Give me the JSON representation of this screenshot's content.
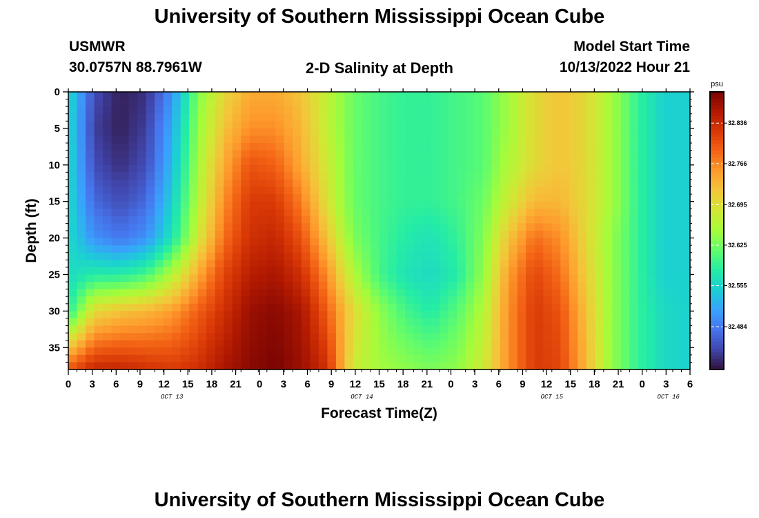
{
  "titles": {
    "top": "University of Southern Mississippi Ocean Cube",
    "bottom": "University of Southern Mississippi Ocean Cube"
  },
  "header": {
    "station": "USMWR",
    "coords": "30.0757N  88.7961W",
    "center_title": "2-D Salinity at Depth",
    "model_label": "Model Start Time",
    "model_time": "10/13/2022 Hour 21"
  },
  "colors": {
    "palette": [
      "#30123b",
      "#4145ab",
      "#4675ed",
      "#39a2fc",
      "#1bcfd4",
      "#24eca6",
      "#61fc6c",
      "#a4fc3b",
      "#d1e834",
      "#f3c63a",
      "#fe9b2d",
      "#f36315",
      "#d93806",
      "#b11901",
      "#7a0403"
    ]
  },
  "chart_data": {
    "type": "heatmap",
    "title": "2-D Salinity at Depth",
    "xlabel": "Forecast Time(Z)",
    "ylabel": "Depth (ft)",
    "x_hours_from_start": [
      0,
      72
    ],
    "x_tick_labels": [
      "0",
      "3",
      "6",
      "9",
      "12",
      "15",
      "18",
      "21",
      "0",
      "3",
      "6",
      "9",
      "12",
      "15",
      "18",
      "21",
      "0",
      "3",
      "6",
      "9",
      "12",
      "15",
      "18",
      "21",
      "0",
      "3",
      "6"
    ],
    "day_labels": [
      {
        "label": "OCT 13",
        "hour": 12
      },
      {
        "label": "OCT 14",
        "hour": 34
      },
      {
        "label": "OCT 15",
        "hour": 56
      },
      {
        "label": "OCT 16",
        "hour": 69.5
      }
    ],
    "ylim": [
      0,
      38
    ],
    "y_ticks": [
      0,
      5,
      10,
      15,
      20,
      25,
      30,
      35
    ],
    "colorbar": {
      "units": "psu",
      "range": [
        32.41,
        32.89
      ],
      "ticks": [
        32.836,
        32.766,
        32.695,
        32.625,
        32.555,
        32.484
      ],
      "tick_labels": [
        "32.836",
        "32.766",
        "32.695",
        "32.625",
        "32.555",
        "32.484"
      ]
    },
    "grid": {
      "nx": 72,
      "ny": 38,
      "depths": [
        0,
        5,
        10,
        15,
        20,
        25,
        30,
        38
      ],
      "hours": [
        0,
        3,
        6,
        9,
        12,
        15,
        18,
        21,
        24,
        27,
        30,
        33,
        36,
        39,
        42,
        45,
        48,
        51,
        54,
        57,
        60,
        63,
        66,
        69,
        72
      ],
      "salinity_rows": [
        [
          32.56,
          32.45,
          32.42,
          32.43,
          32.5,
          32.63,
          32.7,
          32.74,
          32.74,
          32.72,
          32.67,
          32.62,
          32.6,
          32.59,
          32.59,
          32.6,
          32.61,
          32.65,
          32.7,
          32.72,
          32.7,
          32.65,
          32.59,
          32.55,
          32.55
        ],
        [
          32.56,
          32.44,
          32.42,
          32.44,
          32.52,
          32.64,
          32.72,
          32.76,
          32.76,
          32.73,
          32.67,
          32.62,
          32.6,
          32.59,
          32.59,
          32.6,
          32.61,
          32.65,
          32.7,
          32.72,
          32.7,
          32.65,
          32.59,
          32.55,
          32.55
        ],
        [
          32.56,
          32.45,
          32.43,
          32.45,
          32.53,
          32.65,
          32.74,
          32.8,
          32.79,
          32.74,
          32.68,
          32.62,
          32.6,
          32.59,
          32.59,
          32.6,
          32.61,
          32.66,
          32.7,
          32.72,
          32.7,
          32.65,
          32.59,
          32.55,
          32.55
        ],
        [
          32.56,
          32.47,
          32.45,
          32.47,
          32.55,
          32.66,
          32.76,
          32.82,
          32.82,
          32.77,
          32.69,
          32.62,
          32.6,
          32.59,
          32.59,
          32.6,
          32.62,
          32.68,
          32.73,
          32.73,
          32.7,
          32.65,
          32.59,
          32.55,
          32.55
        ],
        [
          32.56,
          32.5,
          32.48,
          32.5,
          32.57,
          32.68,
          32.78,
          32.83,
          32.84,
          32.8,
          32.72,
          32.63,
          32.6,
          32.58,
          32.57,
          32.59,
          32.63,
          32.72,
          32.78,
          32.76,
          32.7,
          32.64,
          32.59,
          32.55,
          32.55
        ],
        [
          32.56,
          32.58,
          32.58,
          32.6,
          32.66,
          32.74,
          32.81,
          32.85,
          32.86,
          32.83,
          32.76,
          32.66,
          32.6,
          32.57,
          32.56,
          32.58,
          32.64,
          32.75,
          32.81,
          32.78,
          32.71,
          32.64,
          32.59,
          32.55,
          32.55
        ],
        [
          32.58,
          32.7,
          32.72,
          32.73,
          32.75,
          32.79,
          32.83,
          32.87,
          32.88,
          32.86,
          32.79,
          32.7,
          32.64,
          32.6,
          32.58,
          32.61,
          32.66,
          32.76,
          32.82,
          32.8,
          32.72,
          32.64,
          32.59,
          32.56,
          32.55
        ],
        [
          32.8,
          32.84,
          32.84,
          32.83,
          32.82,
          32.83,
          32.86,
          32.88,
          32.89,
          32.87,
          32.83,
          32.68,
          32.65,
          32.64,
          32.63,
          32.64,
          32.68,
          32.76,
          32.82,
          32.81,
          32.73,
          32.64,
          32.59,
          32.56,
          32.55
        ]
      ]
    }
  }
}
